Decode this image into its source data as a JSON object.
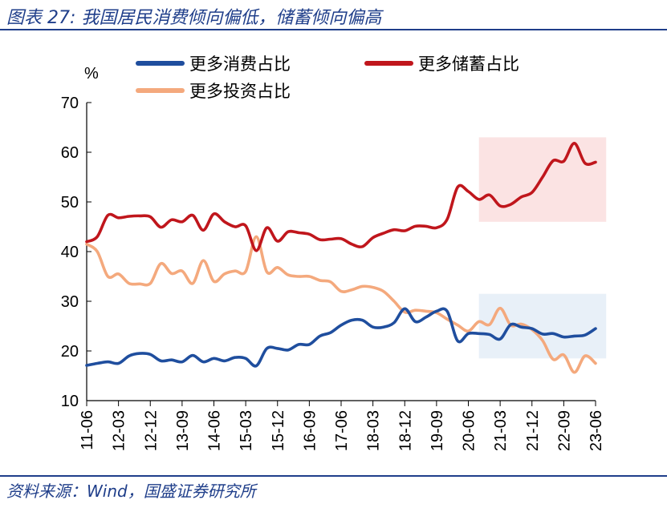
{
  "title": "图表 27: 我国居民消费倾向偏低，储蓄倾向偏高",
  "source": "资料来源：Wind，国盛证券研究所",
  "chart_data": {
    "type": "line",
    "ylabel": "%",
    "ylim": [
      10,
      70
    ],
    "yticks": [
      10,
      20,
      30,
      40,
      50,
      60,
      70
    ],
    "xlim": [
      "2011-06",
      "2023-06"
    ],
    "xtick_labels": [
      "11-06",
      "12-03",
      "12-12",
      "13-09",
      "14-06",
      "15-03",
      "15-12",
      "16-09",
      "17-06",
      "18-03",
      "18-12",
      "19-09",
      "20-06",
      "21-03",
      "21-12",
      "22-09",
      "23-06"
    ],
    "legend_position": "top",
    "highlights": [
      {
        "x_from": "2020-09",
        "x_to": "2023-09",
        "y_from": 46,
        "y_to": 63,
        "color": "#fbe3e3"
      },
      {
        "x_from": "2020-09",
        "x_to": "2023-09",
        "y_from": 18.5,
        "y_to": 31.5,
        "color": "#e8f0f8"
      }
    ],
    "series": [
      {
        "name": "更多消费占比",
        "color": "#1f4e9e",
        "points": [
          [
            "2011-06",
            17.1
          ],
          [
            "2011-09",
            17.5
          ],
          [
            "2011-12",
            17.8
          ],
          [
            "2012-03",
            17.5
          ],
          [
            "2012-06",
            19.0
          ],
          [
            "2012-09",
            19.5
          ],
          [
            "2012-12",
            19.3
          ],
          [
            "2013-03",
            18.0
          ],
          [
            "2013-06",
            18.2
          ],
          [
            "2013-09",
            17.8
          ],
          [
            "2013-12",
            19.1
          ],
          [
            "2014-03",
            17.8
          ],
          [
            "2014-06",
            18.5
          ],
          [
            "2014-09",
            18.0
          ],
          [
            "2014-12",
            18.7
          ],
          [
            "2015-03",
            18.5
          ],
          [
            "2015-06",
            17.0
          ],
          [
            "2015-09",
            20.5
          ],
          [
            "2015-12",
            20.5
          ],
          [
            "2016-03",
            20.2
          ],
          [
            "2016-06",
            21.3
          ],
          [
            "2016-09",
            21.3
          ],
          [
            "2016-12",
            23.0
          ],
          [
            "2017-03",
            23.7
          ],
          [
            "2017-06",
            25.2
          ],
          [
            "2017-09",
            26.2
          ],
          [
            "2017-12",
            26.2
          ],
          [
            "2018-03",
            24.8
          ],
          [
            "2018-06",
            24.8
          ],
          [
            "2018-09",
            25.7
          ],
          [
            "2018-12",
            28.5
          ],
          [
            "2019-03",
            25.9
          ],
          [
            "2019-06",
            26.8
          ],
          [
            "2019-09",
            28.0
          ],
          [
            "2019-12",
            28.0
          ],
          [
            "2020-03",
            22.0
          ],
          [
            "2020-06",
            23.5
          ],
          [
            "2020-09",
            23.5
          ],
          [
            "2020-12",
            23.3
          ],
          [
            "2021-03",
            22.4
          ],
          [
            "2021-06",
            25.3
          ],
          [
            "2021-09",
            24.8
          ],
          [
            "2021-12",
            24.5
          ],
          [
            "2022-03",
            23.4
          ],
          [
            "2022-06",
            23.5
          ],
          [
            "2022-09",
            22.8
          ],
          [
            "2022-12",
            23.0
          ],
          [
            "2023-03",
            23.2
          ],
          [
            "2023-06",
            24.5
          ]
        ]
      },
      {
        "name": "更多储蓄占比",
        "color": "#c0161c",
        "points": [
          [
            "2011-06",
            42.0
          ],
          [
            "2011-09",
            43.0
          ],
          [
            "2011-12",
            47.3
          ],
          [
            "2012-03",
            46.8
          ],
          [
            "2012-06",
            47.1
          ],
          [
            "2012-09",
            47.2
          ],
          [
            "2012-12",
            47.0
          ],
          [
            "2013-03",
            44.9
          ],
          [
            "2013-06",
            46.4
          ],
          [
            "2013-09",
            46.0
          ],
          [
            "2013-12",
            47.3
          ],
          [
            "2014-03",
            44.3
          ],
          [
            "2014-06",
            47.6
          ],
          [
            "2014-09",
            46.0
          ],
          [
            "2014-12",
            45.0
          ],
          [
            "2015-03",
            45.2
          ],
          [
            "2015-06",
            40.2
          ],
          [
            "2015-09",
            44.8
          ],
          [
            "2015-12",
            42.1
          ],
          [
            "2016-03",
            44.0
          ],
          [
            "2016-06",
            43.8
          ],
          [
            "2016-09",
            43.5
          ],
          [
            "2016-12",
            42.4
          ],
          [
            "2017-03",
            42.5
          ],
          [
            "2017-06",
            42.6
          ],
          [
            "2017-09",
            41.5
          ],
          [
            "2017-12",
            41.0
          ],
          [
            "2018-03",
            42.8
          ],
          [
            "2018-06",
            43.7
          ],
          [
            "2018-09",
            44.4
          ],
          [
            "2018-12",
            44.2
          ],
          [
            "2019-03",
            45.1
          ],
          [
            "2019-06",
            45.1
          ],
          [
            "2019-09",
            44.8
          ],
          [
            "2019-12",
            46.5
          ],
          [
            "2020-03",
            53.0
          ],
          [
            "2020-06",
            52.1
          ],
          [
            "2020-09",
            50.5
          ],
          [
            "2020-12",
            51.4
          ],
          [
            "2021-03",
            49.2
          ],
          [
            "2021-06",
            49.5
          ],
          [
            "2021-09",
            51.0
          ],
          [
            "2021-12",
            51.9
          ],
          [
            "2022-03",
            55.0
          ],
          [
            "2022-06",
            58.3
          ],
          [
            "2022-09",
            58.2
          ],
          [
            "2022-12",
            61.8
          ],
          [
            "2023-03",
            57.8
          ],
          [
            "2023-06",
            58.0
          ]
        ]
      },
      {
        "name": "更多投资占比",
        "color": "#f4a97d",
        "points": [
          [
            "2011-06",
            41.5
          ],
          [
            "2011-09",
            40.0
          ],
          [
            "2011-12",
            35.0
          ],
          [
            "2012-03",
            35.5
          ],
          [
            "2012-06",
            33.6
          ],
          [
            "2012-09",
            33.5
          ],
          [
            "2012-12",
            33.6
          ],
          [
            "2013-03",
            37.6
          ],
          [
            "2013-06",
            35.6
          ],
          [
            "2013-09",
            36.1
          ],
          [
            "2013-12",
            33.6
          ],
          [
            "2014-03",
            38.2
          ],
          [
            "2014-06",
            34.0
          ],
          [
            "2014-09",
            35.5
          ],
          [
            "2014-12",
            36.1
          ],
          [
            "2015-03",
            36.0
          ],
          [
            "2015-06",
            43.0
          ],
          [
            "2015-09",
            35.9
          ],
          [
            "2015-12",
            36.8
          ],
          [
            "2016-03",
            35.3
          ],
          [
            "2016-06",
            35.0
          ],
          [
            "2016-09",
            35.0
          ],
          [
            "2016-12",
            34.2
          ],
          [
            "2017-03",
            33.9
          ],
          [
            "2017-06",
            32.0
          ],
          [
            "2017-09",
            32.3
          ],
          [
            "2017-12",
            33.0
          ],
          [
            "2018-03",
            32.8
          ],
          [
            "2018-06",
            32.0
          ],
          [
            "2018-09",
            30.0
          ],
          [
            "2018-12",
            27.8
          ],
          [
            "2019-03",
            28.2
          ],
          [
            "2019-06",
            28.0
          ],
          [
            "2019-09",
            27.7
          ],
          [
            "2019-12",
            26.4
          ],
          [
            "2020-03",
            25.2
          ],
          [
            "2020-06",
            24.0
          ],
          [
            "2020-09",
            25.9
          ],
          [
            "2020-12",
            25.3
          ],
          [
            "2021-03",
            28.6
          ],
          [
            "2021-06",
            25.2
          ],
          [
            "2021-09",
            25.4
          ],
          [
            "2021-12",
            24.3
          ],
          [
            "2022-03",
            22.1
          ],
          [
            "2022-06",
            18.3
          ],
          [
            "2022-09",
            19.2
          ],
          [
            "2022-12",
            15.7
          ],
          [
            "2023-03",
            19.0
          ],
          [
            "2023-06",
            17.5
          ]
        ]
      }
    ]
  }
}
